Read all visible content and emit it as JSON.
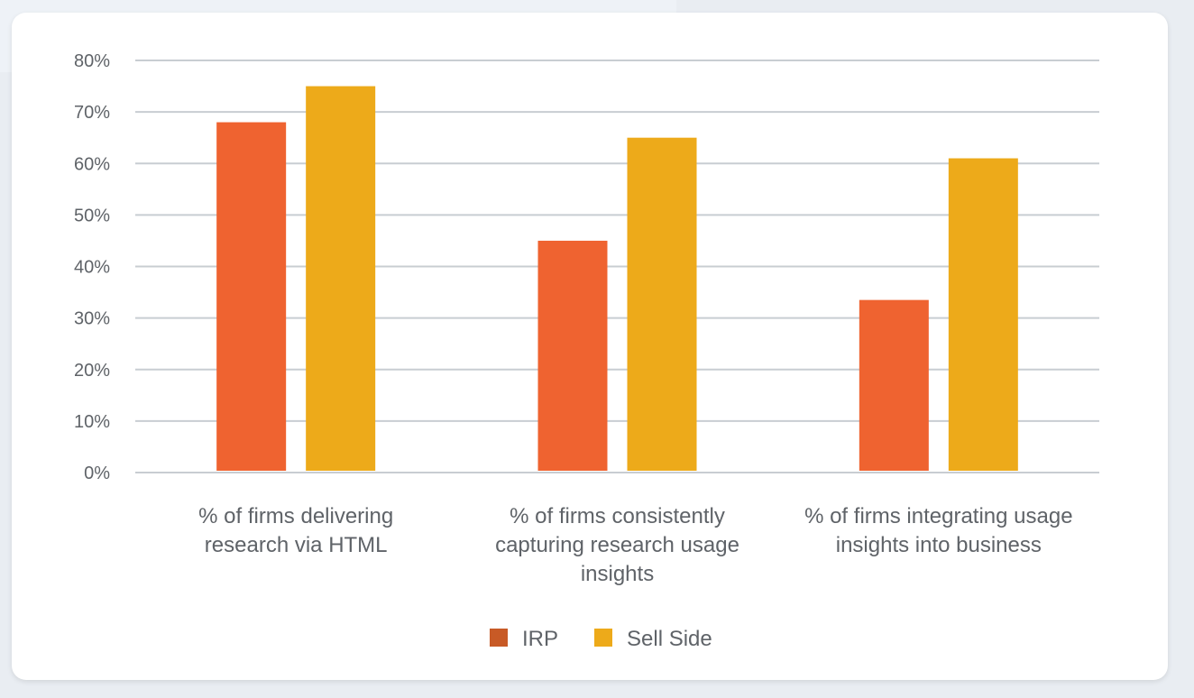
{
  "chart_data": {
    "type": "bar",
    "categories": [
      [
        "% of firms delivering",
        "research via HTML"
      ],
      [
        "% of firms consistently",
        "capturing research usage",
        "insights"
      ],
      [
        "% of firms integrating usage",
        "insights into business"
      ]
    ],
    "series": [
      {
        "name": "IRP",
        "values": [
          68,
          45,
          33.5
        ],
        "color": "#ef6330",
        "legend_color": "#c85a26"
      },
      {
        "name": "Sell Side",
        "values": [
          75,
          65,
          61
        ],
        "color": "#edaa1a",
        "legend_color": "#edaa1a"
      }
    ],
    "ylim": [
      0,
      80
    ],
    "yticks": [
      0,
      10,
      20,
      30,
      40,
      50,
      60,
      70,
      80
    ],
    "ytick_format": "%",
    "grid": true,
    "gridline_color": "#c8cdd2",
    "legend_position": "bottom-center",
    "title": "",
    "xlabel": "",
    "ylabel": ""
  }
}
